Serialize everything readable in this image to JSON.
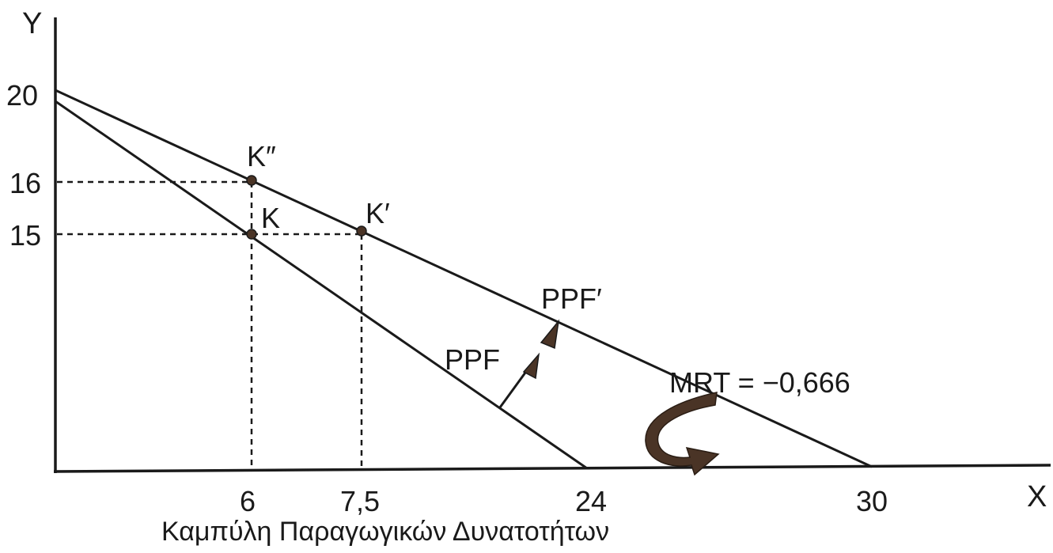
{
  "chart_data": {
    "type": "line",
    "x_axis_label": "X",
    "y_axis_label": "Y",
    "caption": "Καμπύλη Παραγωγικών Δυνατοτήτων",
    "x_ticks": [
      "6",
      "7,5",
      "24",
      "30"
    ],
    "y_ticks": [
      "15",
      "16",
      "20"
    ],
    "series": [
      {
        "name": "PPF",
        "points": [
          [
            0,
            20
          ],
          [
            6,
            15
          ],
          [
            24,
            0
          ]
        ]
      },
      {
        "name": "PPF′",
        "points": [
          [
            0,
            20
          ],
          [
            6,
            16
          ],
          [
            7.5,
            15
          ],
          [
            30,
            0
          ]
        ]
      }
    ],
    "points": [
      {
        "label": "K",
        "x": 6,
        "y": 15
      },
      {
        "label": "K″",
        "x": 6,
        "y": 16
      },
      {
        "label": "K′",
        "x": 7.5,
        "y": 15
      }
    ],
    "annotation": "MRT = −0,666",
    "shift_direction": "outward"
  }
}
